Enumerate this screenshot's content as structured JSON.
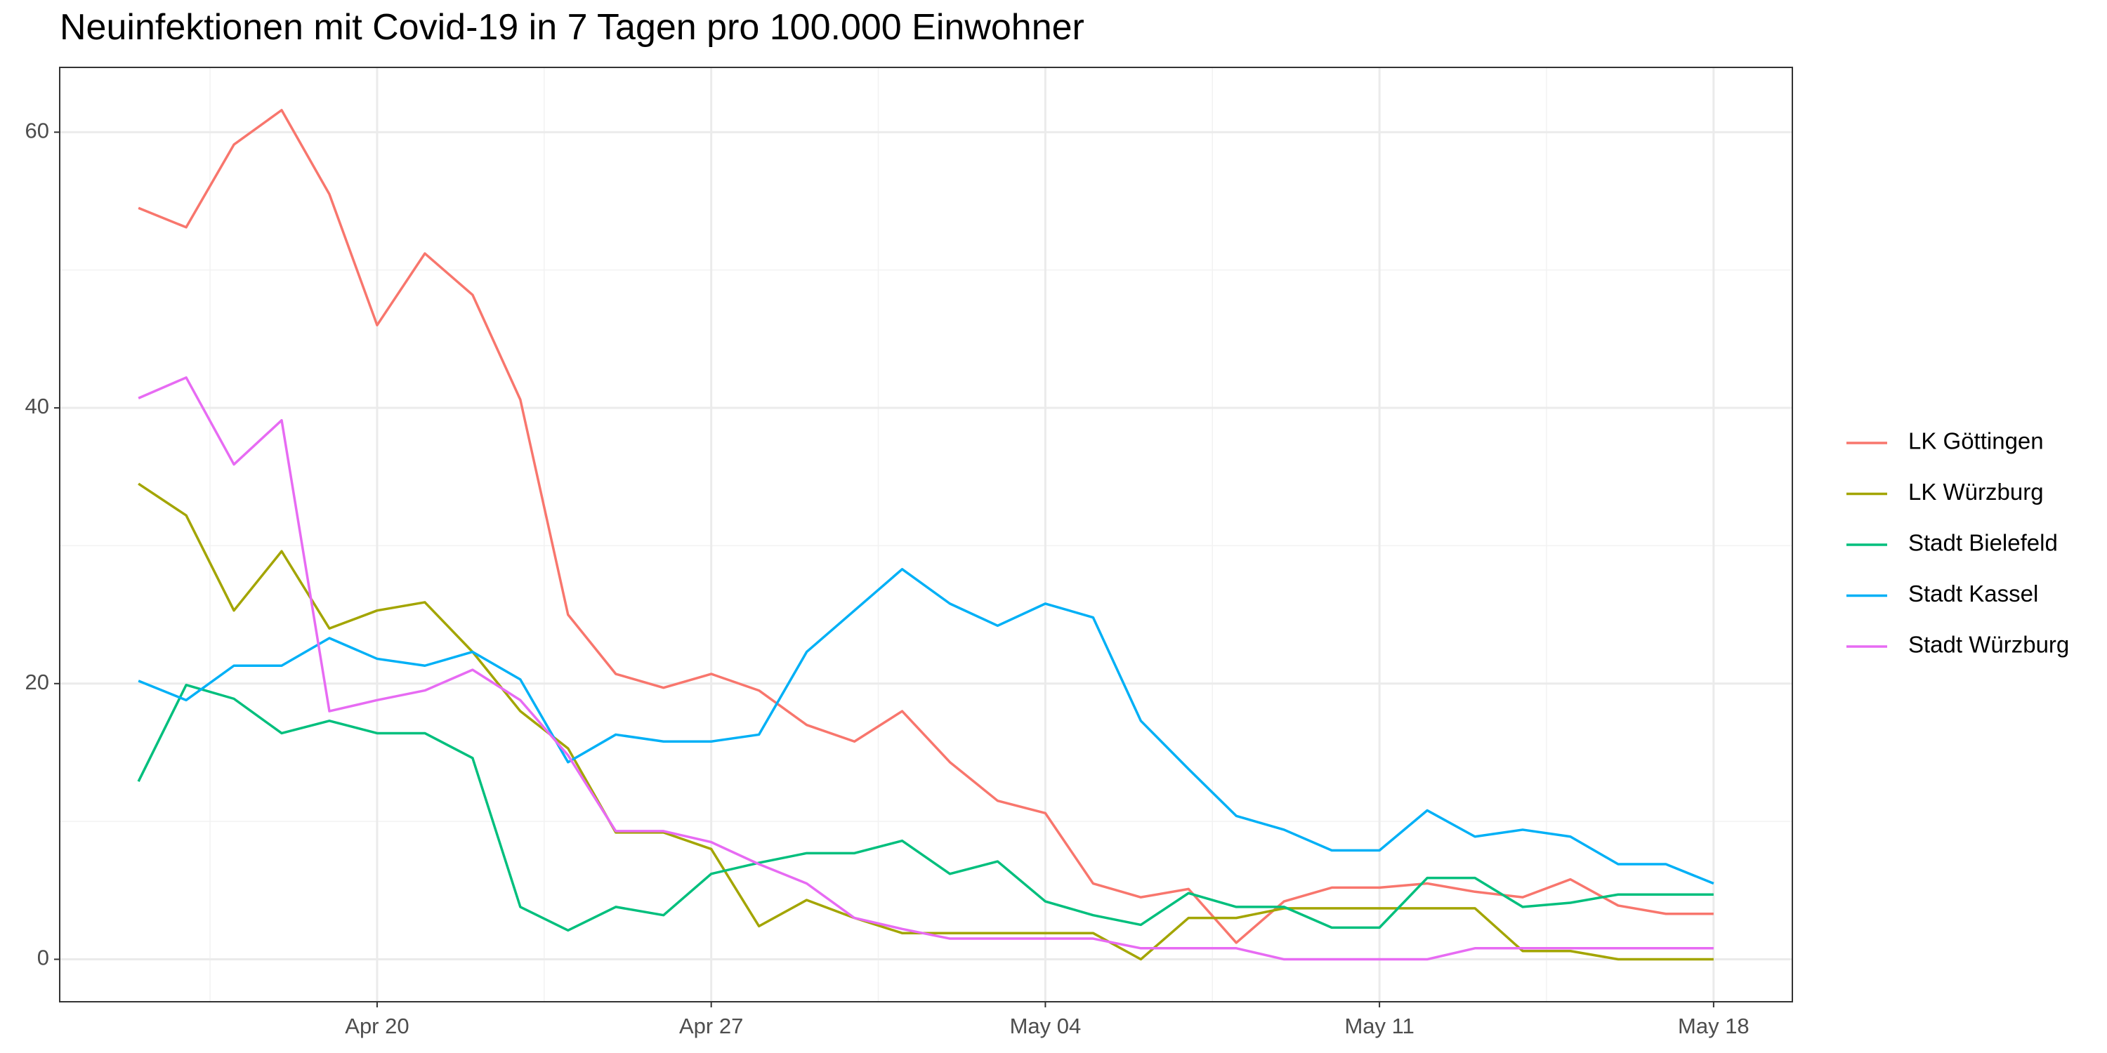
{
  "chart_data": {
    "type": "line",
    "title": "Neuinfektionen mit Covid-19 in 7 Tagen pro 100.000 Einwohner",
    "x": [
      "Apr 15",
      "Apr 16",
      "Apr 17",
      "Apr 18",
      "Apr 19",
      "Apr 20",
      "Apr 21",
      "Apr 22",
      "Apr 23",
      "Apr 24",
      "Apr 25",
      "Apr 26",
      "Apr 27",
      "Apr 28",
      "Apr 29",
      "Apr 30",
      "May 01",
      "May 02",
      "May 03",
      "May 04",
      "May 05",
      "May 06",
      "May 07",
      "May 08",
      "May 09",
      "May 10",
      "May 11",
      "May 12",
      "May 13",
      "May 14",
      "May 15",
      "May 16",
      "May 17",
      "May 18"
    ],
    "xticks": [
      "Apr 20",
      "Apr 27",
      "May 04",
      "May 11",
      "May 18"
    ],
    "ylim": [
      -3.08,
      64.7
    ],
    "yticks": [
      0,
      20,
      40,
      60
    ],
    "grid": true,
    "legend": "right",
    "series": [
      {
        "name": "LK Göttingen",
        "color": "#f8766d",
        "values": [
          54.5,
          53.1,
          59.1,
          61.6,
          55.5,
          46.0,
          51.2,
          48.2,
          40.6,
          25.0,
          20.7,
          19.7,
          20.7,
          19.5,
          17.0,
          15.8,
          18.0,
          14.3,
          11.5,
          10.6,
          5.5,
          4.5,
          5.1,
          1.2,
          4.2,
          5.2,
          5.2,
          5.5,
          4.9,
          4.5,
          5.8,
          3.9,
          3.3,
          3.3
        ]
      },
      {
        "name": "LK Würzburg",
        "color": "#a3a500",
        "values": [
          34.5,
          32.2,
          25.3,
          29.6,
          24.0,
          25.3,
          25.9,
          22.3,
          18.0,
          15.3,
          9.2,
          9.2,
          8.0,
          2.4,
          4.3,
          3.0,
          1.9,
          1.9,
          1.9,
          1.9,
          1.9,
          0,
          3.0,
          3.0,
          3.7,
          3.7,
          3.7,
          3.7,
          3.7,
          0.6,
          0.6,
          0,
          0,
          0
        ]
      },
      {
        "name": "Stadt Bielefeld",
        "color": "#00bf7d",
        "values": [
          12.9,
          19.9,
          18.9,
          16.4,
          17.3,
          16.4,
          16.4,
          14.6,
          3.8,
          2.1,
          3.8,
          3.2,
          6.2,
          7.0,
          7.7,
          7.7,
          8.6,
          6.2,
          7.1,
          4.2,
          3.2,
          2.5,
          4.8,
          3.8,
          3.8,
          2.3,
          2.3,
          5.9,
          5.9,
          3.8,
          4.1,
          4.7,
          4.7,
          4.7
        ]
      },
      {
        "name": "Stadt Kassel",
        "color": "#00b0f6",
        "values": [
          20.2,
          18.8,
          21.3,
          21.3,
          23.3,
          21.8,
          21.3,
          22.3,
          20.3,
          14.3,
          16.3,
          15.8,
          15.8,
          16.3,
          22.3,
          25.3,
          28.3,
          25.8,
          24.2,
          25.8,
          24.8,
          17.3,
          13.8,
          10.4,
          9.4,
          7.9,
          7.9,
          10.8,
          8.9,
          9.4,
          8.9,
          6.9,
          6.9,
          5.5
        ]
      },
      {
        "name": "Stadt Würzburg",
        "color": "#e76bf3",
        "values": [
          40.7,
          42.2,
          35.9,
          39.1,
          18.0,
          18.8,
          19.5,
          21.0,
          18.8,
          14.8,
          9.3,
          9.3,
          8.5,
          6.9,
          5.5,
          3.0,
          2.2,
          1.5,
          1.5,
          1.5,
          1.5,
          0.8,
          0.8,
          0.8,
          0,
          0,
          0,
          0,
          0.8,
          0.8,
          0.8,
          0.8,
          0.8,
          0.8
        ]
      }
    ]
  }
}
